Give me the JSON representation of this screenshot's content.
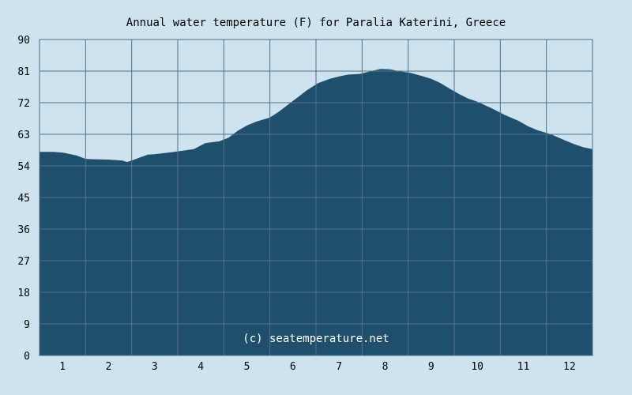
{
  "chart_data": {
    "type": "area",
    "title": "Annual water temperature (F) for Paralia Katerini, Greece",
    "watermark": "(c) seatemperature.net",
    "xlabel": "",
    "ylabel": "",
    "x_ticks": [
      "1",
      "2",
      "3",
      "4",
      "5",
      "6",
      "7",
      "8",
      "9",
      "10",
      "11",
      "12"
    ],
    "y_ticks": [
      "0",
      "9",
      "18",
      "27",
      "36",
      "45",
      "54",
      "63",
      "72",
      "81",
      "90"
    ],
    "ylim": [
      0,
      90
    ],
    "xlim": [
      0.5,
      12.5
    ],
    "grid": true,
    "series": [
      {
        "values": [
          [
            0.5,
            58.0
          ],
          [
            0.8,
            58.0
          ],
          [
            1.0,
            57.8
          ],
          [
            1.3,
            57.0
          ],
          [
            1.5,
            56.0
          ],
          [
            1.7,
            55.9
          ],
          [
            2.0,
            55.8
          ],
          [
            2.3,
            55.5
          ],
          [
            2.4,
            55.1
          ],
          [
            2.5,
            55.5
          ],
          [
            2.7,
            56.5
          ],
          [
            2.85,
            57.2
          ],
          [
            3.0,
            57.3
          ],
          [
            3.3,
            57.8
          ],
          [
            3.6,
            58.3
          ],
          [
            3.85,
            58.8
          ],
          [
            4.1,
            60.5
          ],
          [
            4.4,
            61.0
          ],
          [
            4.6,
            62.0
          ],
          [
            4.8,
            64.0
          ],
          [
            5.0,
            65.5
          ],
          [
            5.2,
            66.6
          ],
          [
            5.5,
            67.8
          ],
          [
            5.7,
            69.5
          ],
          [
            6.0,
            72.5
          ],
          [
            6.3,
            75.5
          ],
          [
            6.55,
            77.6
          ],
          [
            6.8,
            78.8
          ],
          [
            7.0,
            79.5
          ],
          [
            7.2,
            80.0
          ],
          [
            7.45,
            80.2
          ],
          [
            7.7,
            81.0
          ],
          [
            7.9,
            81.6
          ],
          [
            8.1,
            81.5
          ],
          [
            8.3,
            81.0
          ],
          [
            8.55,
            80.5
          ],
          [
            8.8,
            79.6
          ],
          [
            9.0,
            78.8
          ],
          [
            9.2,
            77.6
          ],
          [
            9.4,
            76.0
          ],
          [
            9.6,
            74.5
          ],
          [
            9.8,
            73.2
          ],
          [
            10.0,
            72.3
          ],
          [
            10.3,
            70.5
          ],
          [
            10.6,
            68.5
          ],
          [
            10.9,
            66.8
          ],
          [
            11.1,
            65.3
          ],
          [
            11.3,
            64.2
          ],
          [
            11.6,
            63.0
          ],
          [
            11.9,
            61.3
          ],
          [
            12.1,
            60.2
          ],
          [
            12.3,
            59.3
          ],
          [
            12.5,
            58.8
          ]
        ]
      }
    ],
    "colors": {
      "page_background": "#cde3ef",
      "plot_background": "#cde3ef",
      "area_fill": "#1f4f6a",
      "grid": "#52708a",
      "watermark": "#ffffff"
    }
  }
}
